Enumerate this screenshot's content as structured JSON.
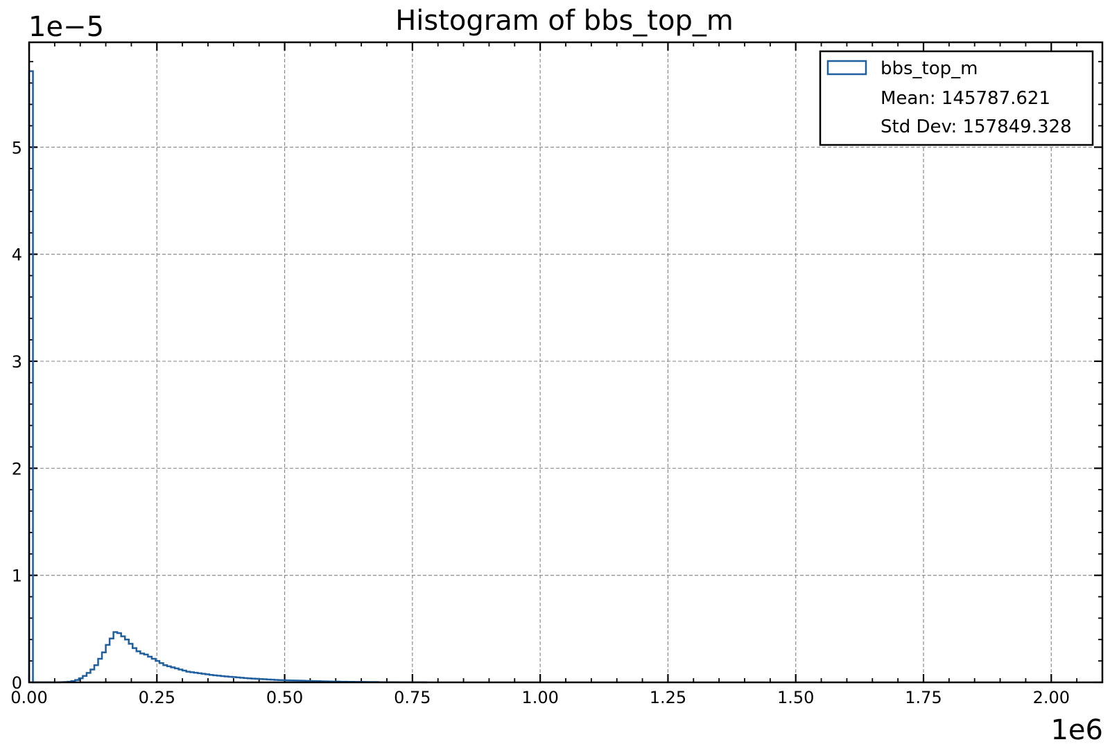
{
  "chart_data": {
    "type": "bar",
    "title": "Histogram of bbs_top_m",
    "xlabel": "",
    "ylabel": "",
    "x_multiplier": "1e6",
    "y_multiplier": "1e−5",
    "xlim": [
      0,
      2100000
    ],
    "ylim": [
      0,
      5.98e-05
    ],
    "xticks": [
      0,
      250000,
      500000,
      750000,
      1000000,
      1250000,
      1500000,
      1750000,
      2000000
    ],
    "xtick_labels": [
      "0.00",
      "0.25",
      "0.50",
      "0.75",
      "1.00",
      "1.25",
      "1.50",
      "1.75",
      "2.00"
    ],
    "yticks": [
      0,
      1e-05,
      2e-05,
      3e-05,
      4e-05,
      5e-05
    ],
    "ytick_labels": [
      "0",
      "1",
      "2",
      "3",
      "4",
      "5"
    ],
    "grid": true,
    "legend": "top-right",
    "color": "#1f5fa0",
    "bin_width": 7500,
    "series": [
      {
        "name": "bbs_top_m",
        "x": [
          0,
          7500,
          15000,
          22500,
          30000,
          37500,
          45000,
          52500,
          60000,
          67500,
          75000,
          82500,
          90000,
          97500,
          105000,
          112500,
          120000,
          127500,
          135000,
          142500,
          150000,
          157500,
          165000,
          172500,
          180000,
          187500,
          195000,
          202500,
          210000,
          217500,
          225000,
          232500,
          240000,
          247500,
          255000,
          262500,
          270000,
          277500,
          285000,
          292500,
          300000,
          307500,
          315000,
          322500,
          330000,
          337500,
          345000,
          352500,
          360000,
          367500,
          375000,
          382500,
          390000,
          397500,
          405000,
          412500,
          420000,
          427500,
          435000,
          442500,
          450000,
          457500,
          465000,
          472500,
          480000,
          487500,
          495000,
          502500,
          510000,
          517500,
          525000,
          532500,
          540000,
          547500,
          555000,
          562500,
          570000,
          577500,
          585000,
          592500,
          600000,
          607500,
          615000,
          622500,
          630000,
          637500,
          645000,
          652500,
          660000,
          667500,
          675000,
          682500,
          690000,
          697500,
          705000,
          712500,
          720000,
          727500,
          735000,
          742500,
          750000,
          757500,
          765000,
          772500
        ],
        "values": [
          5.71e-05,
          0,
          0,
          0,
          0,
          0,
          0,
          0,
          2e-08,
          3e-08,
          6e-08,
          1.2e-07,
          2.2e-07,
          3.8e-07,
          6e-07,
          8.8e-07,
          1.2e-06,
          1.6e-06,
          2.2e-06,
          2.8e-06,
          3.5e-06,
          4.1e-06,
          4.7e-06,
          4.6e-06,
          4.3e-06,
          4e-06,
          3.6e-06,
          3.2e-06,
          2.9e-06,
          2.7e-06,
          2.6e-06,
          2.4e-06,
          2.2e-06,
          2e-06,
          1.8e-06,
          1.6e-06,
          1.5e-06,
          1.4e-06,
          1.3e-06,
          1.2e-06,
          1.1e-06,
          1e-06,
          9.5e-07,
          9e-07,
          8.5e-07,
          8e-07,
          7.5e-07,
          7e-07,
          6.6e-07,
          6.2e-07,
          5.8e-07,
          5.5e-07,
          5.2e-07,
          4.9e-07,
          4.6e-07,
          4.3e-07,
          4e-07,
          3.7e-07,
          3.5e-07,
          3.3e-07,
          3.1e-07,
          2.9e-07,
          2.7e-07,
          2.5e-07,
          2.3e-07,
          2.1e-07,
          2e-07,
          1.9e-07,
          1.8e-07,
          1.7e-07,
          1.6e-07,
          1.5e-07,
          1.4e-07,
          1.3e-07,
          1.2e-07,
          1.1e-07,
          1e-07,
          9e-08,
          8e-08,
          7e-08,
          7e-08,
          6e-08,
          6e-08,
          5e-08,
          5e-08,
          4e-08,
          4e-08,
          4e-08,
          3e-08,
          3e-08,
          3e-08,
          2e-08,
          2e-08,
          2e-08,
          2e-08,
          2e-08,
          1e-08,
          1e-08,
          1e-08,
          1e-08,
          1e-08,
          1e-08,
          1e-08,
          0
        ]
      }
    ],
    "legend_entries": {
      "series": "bbs_top_m",
      "mean": "Mean: 145787.621",
      "std": "Std Dev: 157849.328"
    }
  }
}
